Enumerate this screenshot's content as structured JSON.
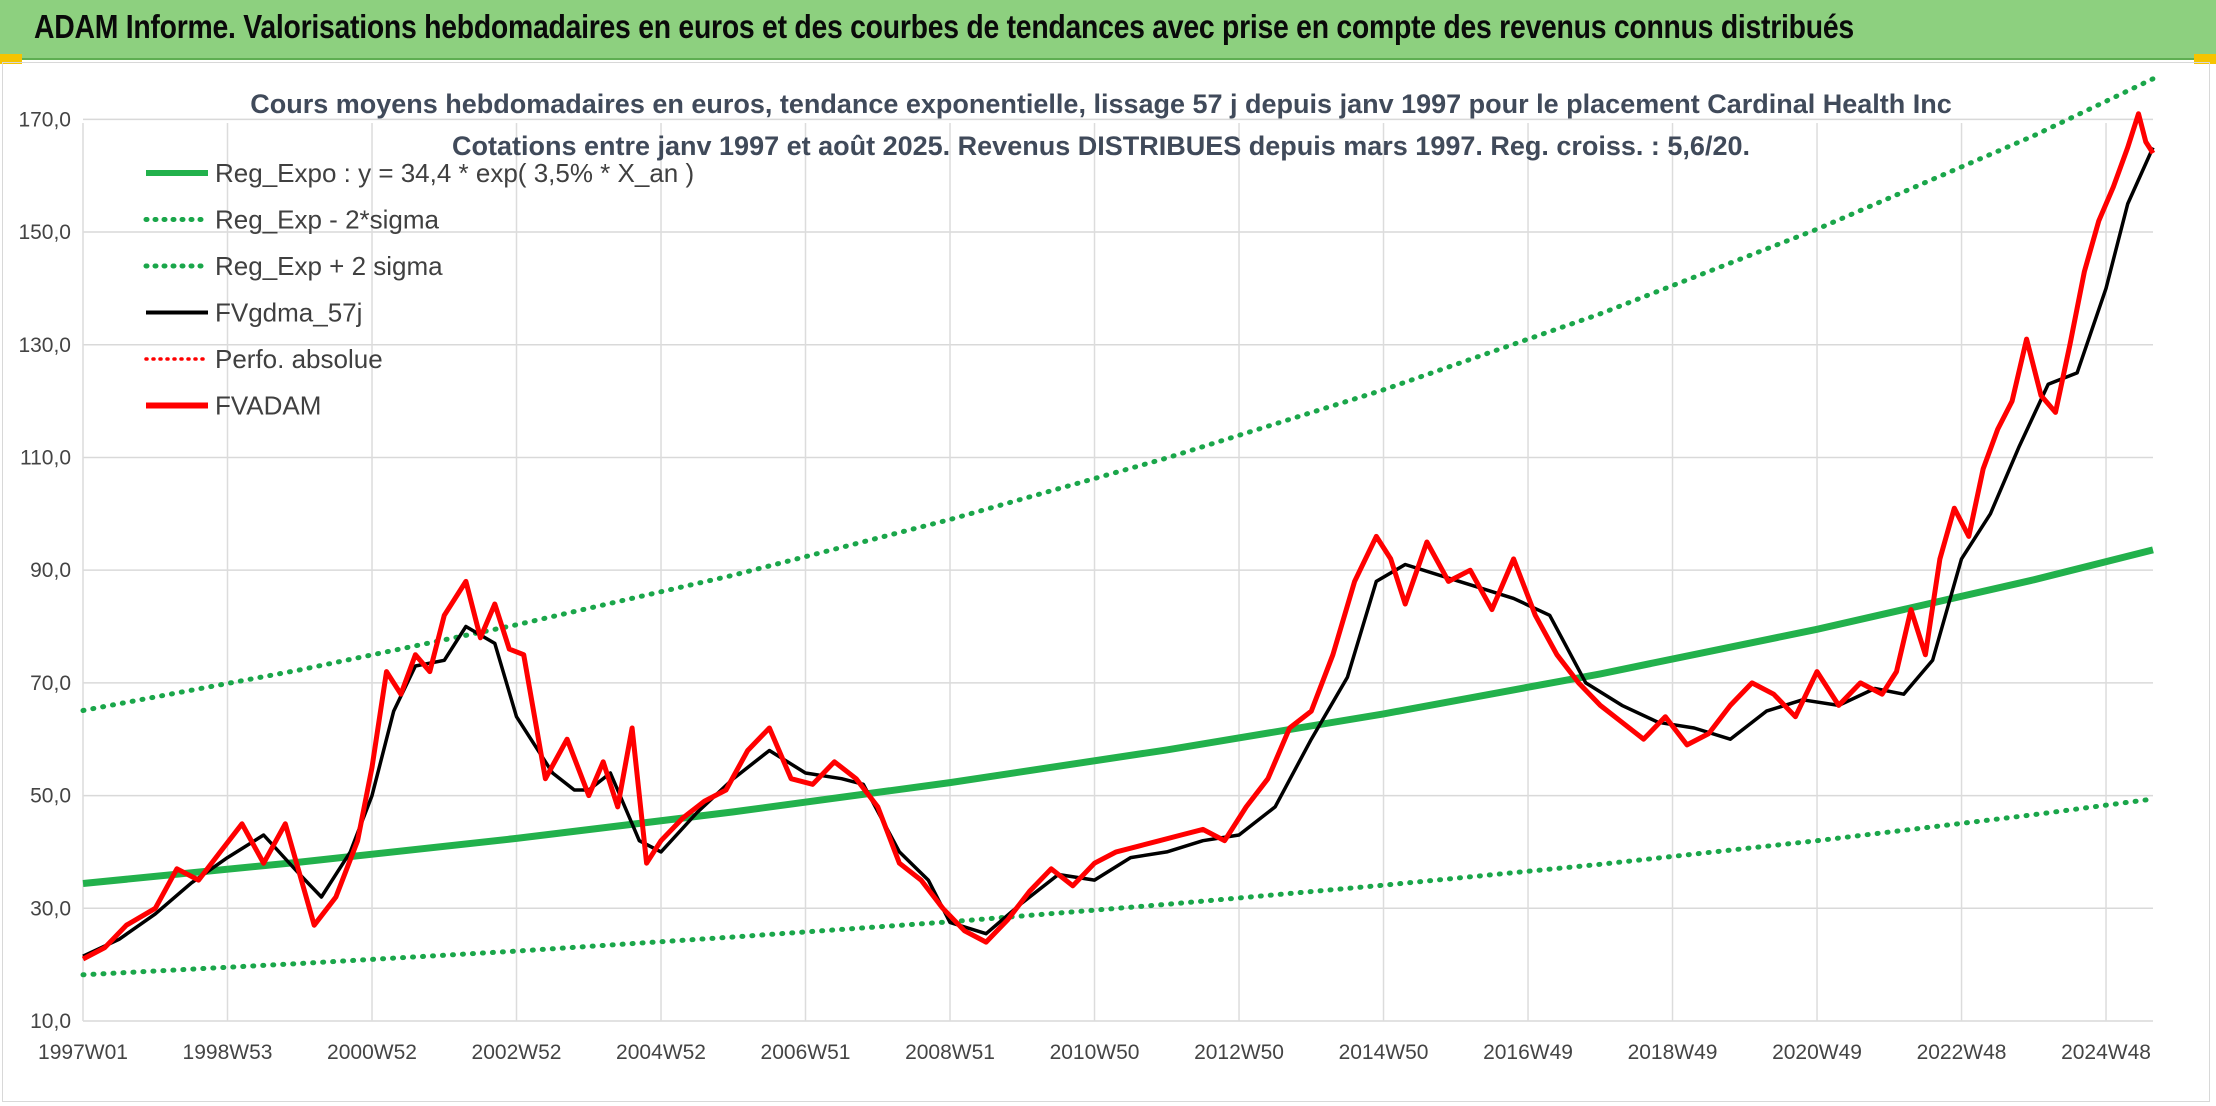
{
  "header": {
    "title": "ADAM Informe. Valorisations hebdomadaires en euros et des courbes de tendances avec prise en compte des revenus connus distribués"
  },
  "colors": {
    "banner": "#8dd07f",
    "trend_green": "#22b14c",
    "sigma_green": "#1aa64a",
    "fvgdma_black": "#000000",
    "fvadam_red": "#ff0000"
  },
  "chart_data": {
    "type": "line",
    "title_line1": "Cours moyens hebdomadaires en euros, tendance exponentielle, lissage 57 j depuis janv 1997 pour le placement Cardinal Health Inc",
    "title_line2": "Cotations entre janv 1997 et août 2025. Revenus DISTRIBUES depuis mars 1997. Reg. croiss. : 5,6/20.",
    "ylim": [
      10,
      180
    ],
    "y_ticks": [
      "10,0",
      "30,0",
      "50,0",
      "70,0",
      "90,0",
      "110,0",
      "130,0",
      "150,0",
      "170,0"
    ],
    "y_tick_values": [
      10,
      30,
      50,
      70,
      90,
      110,
      130,
      150,
      170
    ],
    "x_range": [
      1997.0,
      2025.65
    ],
    "x_tick_labels": [
      "1997W01",
      "1998W53",
      "2000W52",
      "2002W52",
      "2004W52",
      "2006W51",
      "2008W51",
      "2010W50",
      "2012W50",
      "2014W50",
      "2016W49",
      "2018W49",
      "2020W49",
      "2022W48",
      "2024W48"
    ],
    "x_tick_values": [
      1997.0,
      1999.0,
      2001.0,
      2003.0,
      2005.0,
      2007.0,
      2009.0,
      2011.0,
      2013.0,
      2015.0,
      2017.0,
      2019.0,
      2021.0,
      2023.0,
      2025.0
    ],
    "grid": true,
    "legend_position": "top-left",
    "legend": [
      {
        "label": "Reg_Expo : y = 34,4 * exp( 3,5% *  X_an )",
        "style": "solid-thick-green"
      },
      {
        "label": "Reg_Exp - 2*sigma",
        "style": "dotted-green"
      },
      {
        "label": "Reg_Exp + 2 sigma",
        "style": "dotted-green"
      },
      {
        "label": "FVgdma_57j",
        "style": "solid-black"
      },
      {
        "label": "Perfo. absolue",
        "style": "dotted-red"
      },
      {
        "label": "FVADAM",
        "style": "solid-red"
      }
    ],
    "series": [
      {
        "name": "Reg_Expo : y = 34,4 * exp( 3,5% *  X_an )",
        "x": [
          1997,
          2000,
          2003,
          2006,
          2009,
          2012,
          2015,
          2018,
          2021,
          2024,
          2025.65
        ],
        "y": [
          34.4,
          38.2,
          42.4,
          47.1,
          52.3,
          58.1,
          64.5,
          71.6,
          79.5,
          88.3,
          93.6
        ]
      },
      {
        "name": "Reg_Exp - 2*sigma",
        "x": [
          1997,
          2000,
          2003,
          2006,
          2009,
          2012,
          2015,
          2018,
          2021,
          2024,
          2025.65
        ],
        "y": [
          18.2,
          20.2,
          22.4,
          24.9,
          27.6,
          30.7,
          34.1,
          37.8,
          42.0,
          46.6,
          49.4
        ]
      },
      {
        "name": "Reg_Exp + 2 sigma",
        "x": [
          1997,
          2000,
          2003,
          2006,
          2009,
          2012,
          2015,
          2018,
          2021,
          2024,
          2025.65
        ],
        "y": [
          65.1,
          72.3,
          80.3,
          89.1,
          99.0,
          109.9,
          122.0,
          135.5,
          150.5,
          167.1,
          177.2
        ]
      },
      {
        "name": "FVgdma_57j",
        "x": [
          1997.0,
          1997.5,
          1998.0,
          1998.5,
          1999.0,
          1999.5,
          2000.0,
          2000.3,
          2000.7,
          2001.0,
          2001.3,
          2001.6,
          2002.0,
          2002.3,
          2002.7,
          2003.0,
          2003.5,
          2003.8,
          2004.0,
          2004.3,
          2004.7,
          2005.0,
          2005.5,
          2006.0,
          2006.5,
          2007.0,
          2007.5,
          2007.8,
          2008.3,
          2008.7,
          2009.0,
          2009.5,
          2010.0,
          2010.5,
          2011.0,
          2011.5,
          2012.0,
          2012.5,
          2013.0,
          2013.5,
          2014.0,
          2014.5,
          2014.9,
          2015.3,
          2015.8,
          2016.3,
          2016.8,
          2017.3,
          2017.8,
          2018.3,
          2018.8,
          2019.3,
          2019.8,
          2020.3,
          2020.8,
          2021.3,
          2021.8,
          2022.2,
          2022.6,
          2023.0,
          2023.4,
          2023.8,
          2024.2,
          2024.6,
          2025.0,
          2025.3,
          2025.65
        ],
        "y": [
          21.5,
          24.5,
          29.0,
          34.5,
          39.0,
          43.0,
          36.0,
          32.0,
          40.0,
          50.0,
          65.0,
          73.0,
          74.0,
          80.0,
          77.0,
          64.0,
          54.0,
          51.0,
          51.0,
          54.0,
          42.0,
          40.0,
          47.0,
          53.0,
          58.0,
          54.0,
          53.0,
          52.0,
          40.0,
          35.0,
          27.5,
          25.5,
          31.0,
          36.0,
          35.0,
          39.0,
          40.0,
          42.0,
          43.0,
          48.0,
          60.0,
          71.0,
          88.0,
          91.0,
          89.0,
          87.0,
          85.0,
          82.0,
          70.0,
          66.0,
          63.0,
          62.0,
          60.0,
          65.0,
          67.0,
          66.0,
          69.0,
          68.0,
          74.0,
          92.0,
          100.0,
          112.0,
          123.0,
          125.0,
          140.0,
          155.0,
          165.0
        ]
      },
      {
        "name": "FVADAM",
        "x": [
          1997.0,
          1997.3,
          1997.6,
          1998.0,
          1998.3,
          1998.6,
          1998.9,
          1999.2,
          1999.5,
          1999.8,
          2000.0,
          2000.2,
          2000.5,
          2000.8,
          2001.0,
          2001.2,
          2001.4,
          2001.6,
          2001.8,
          2002.0,
          2002.3,
          2002.5,
          2002.7,
          2002.9,
          2003.1,
          2003.4,
          2003.7,
          2004.0,
          2004.2,
          2004.4,
          2004.6,
          2004.8,
          2005.0,
          2005.3,
          2005.6,
          2005.9,
          2006.2,
          2006.5,
          2006.8,
          2007.1,
          2007.4,
          2007.7,
          2008.0,
          2008.3,
          2008.6,
          2008.9,
          2009.2,
          2009.5,
          2009.8,
          2010.1,
          2010.4,
          2010.7,
          2011.0,
          2011.3,
          2011.6,
          2011.9,
          2012.2,
          2012.5,
          2012.8,
          2013.1,
          2013.4,
          2013.7,
          2014.0,
          2014.3,
          2014.6,
          2014.9,
          2015.1,
          2015.3,
          2015.6,
          2015.9,
          2016.2,
          2016.5,
          2016.8,
          2017.1,
          2017.4,
          2017.7,
          2018.0,
          2018.3,
          2018.6,
          2018.9,
          2019.2,
          2019.5,
          2019.8,
          2020.1,
          2020.4,
          2020.7,
          2021.0,
          2021.3,
          2021.6,
          2021.9,
          2022.1,
          2022.3,
          2022.5,
          2022.7,
          2022.9,
          2023.1,
          2023.3,
          2023.5,
          2023.7,
          2023.9,
          2024.1,
          2024.3,
          2024.5,
          2024.7,
          2024.9,
          2025.1,
          2025.3,
          2025.45,
          2025.55,
          2025.65
        ],
        "y": [
          21.0,
          23.0,
          27.0,
          30.0,
          37.0,
          35.0,
          40.0,
          45.0,
          38.0,
          45.0,
          36.0,
          27.0,
          32.0,
          42.0,
          55.0,
          72.0,
          68.0,
          75.0,
          72.0,
          82.0,
          88.0,
          78.0,
          84.0,
          76.0,
          75.0,
          53.0,
          60.0,
          50.0,
          56.0,
          48.0,
          62.0,
          38.0,
          42.0,
          46.0,
          49.0,
          51.0,
          58.0,
          62.0,
          53.0,
          52.0,
          56.0,
          53.0,
          48.0,
          38.0,
          35.0,
          30.0,
          26.0,
          24.0,
          28.0,
          33.0,
          37.0,
          34.0,
          38.0,
          40.0,
          41.0,
          42.0,
          43.0,
          44.0,
          42.0,
          48.0,
          53.0,
          62.0,
          65.0,
          75.0,
          88.0,
          96.0,
          92.0,
          84.0,
          95.0,
          88.0,
          90.0,
          83.0,
          92.0,
          82.0,
          75.0,
          70.0,
          66.0,
          63.0,
          60.0,
          64.0,
          59.0,
          61.0,
          66.0,
          70.0,
          68.0,
          64.0,
          72.0,
          66.0,
          70.0,
          68.0,
          72.0,
          83.0,
          75.0,
          92.0,
          101.0,
          96.0,
          108.0,
          115.0,
          120.0,
          131.0,
          121.0,
          118.0,
          130.0,
          143.0,
          152.0,
          158.0,
          165.0,
          171.0,
          166.0,
          164.0
        ]
      }
    ]
  }
}
